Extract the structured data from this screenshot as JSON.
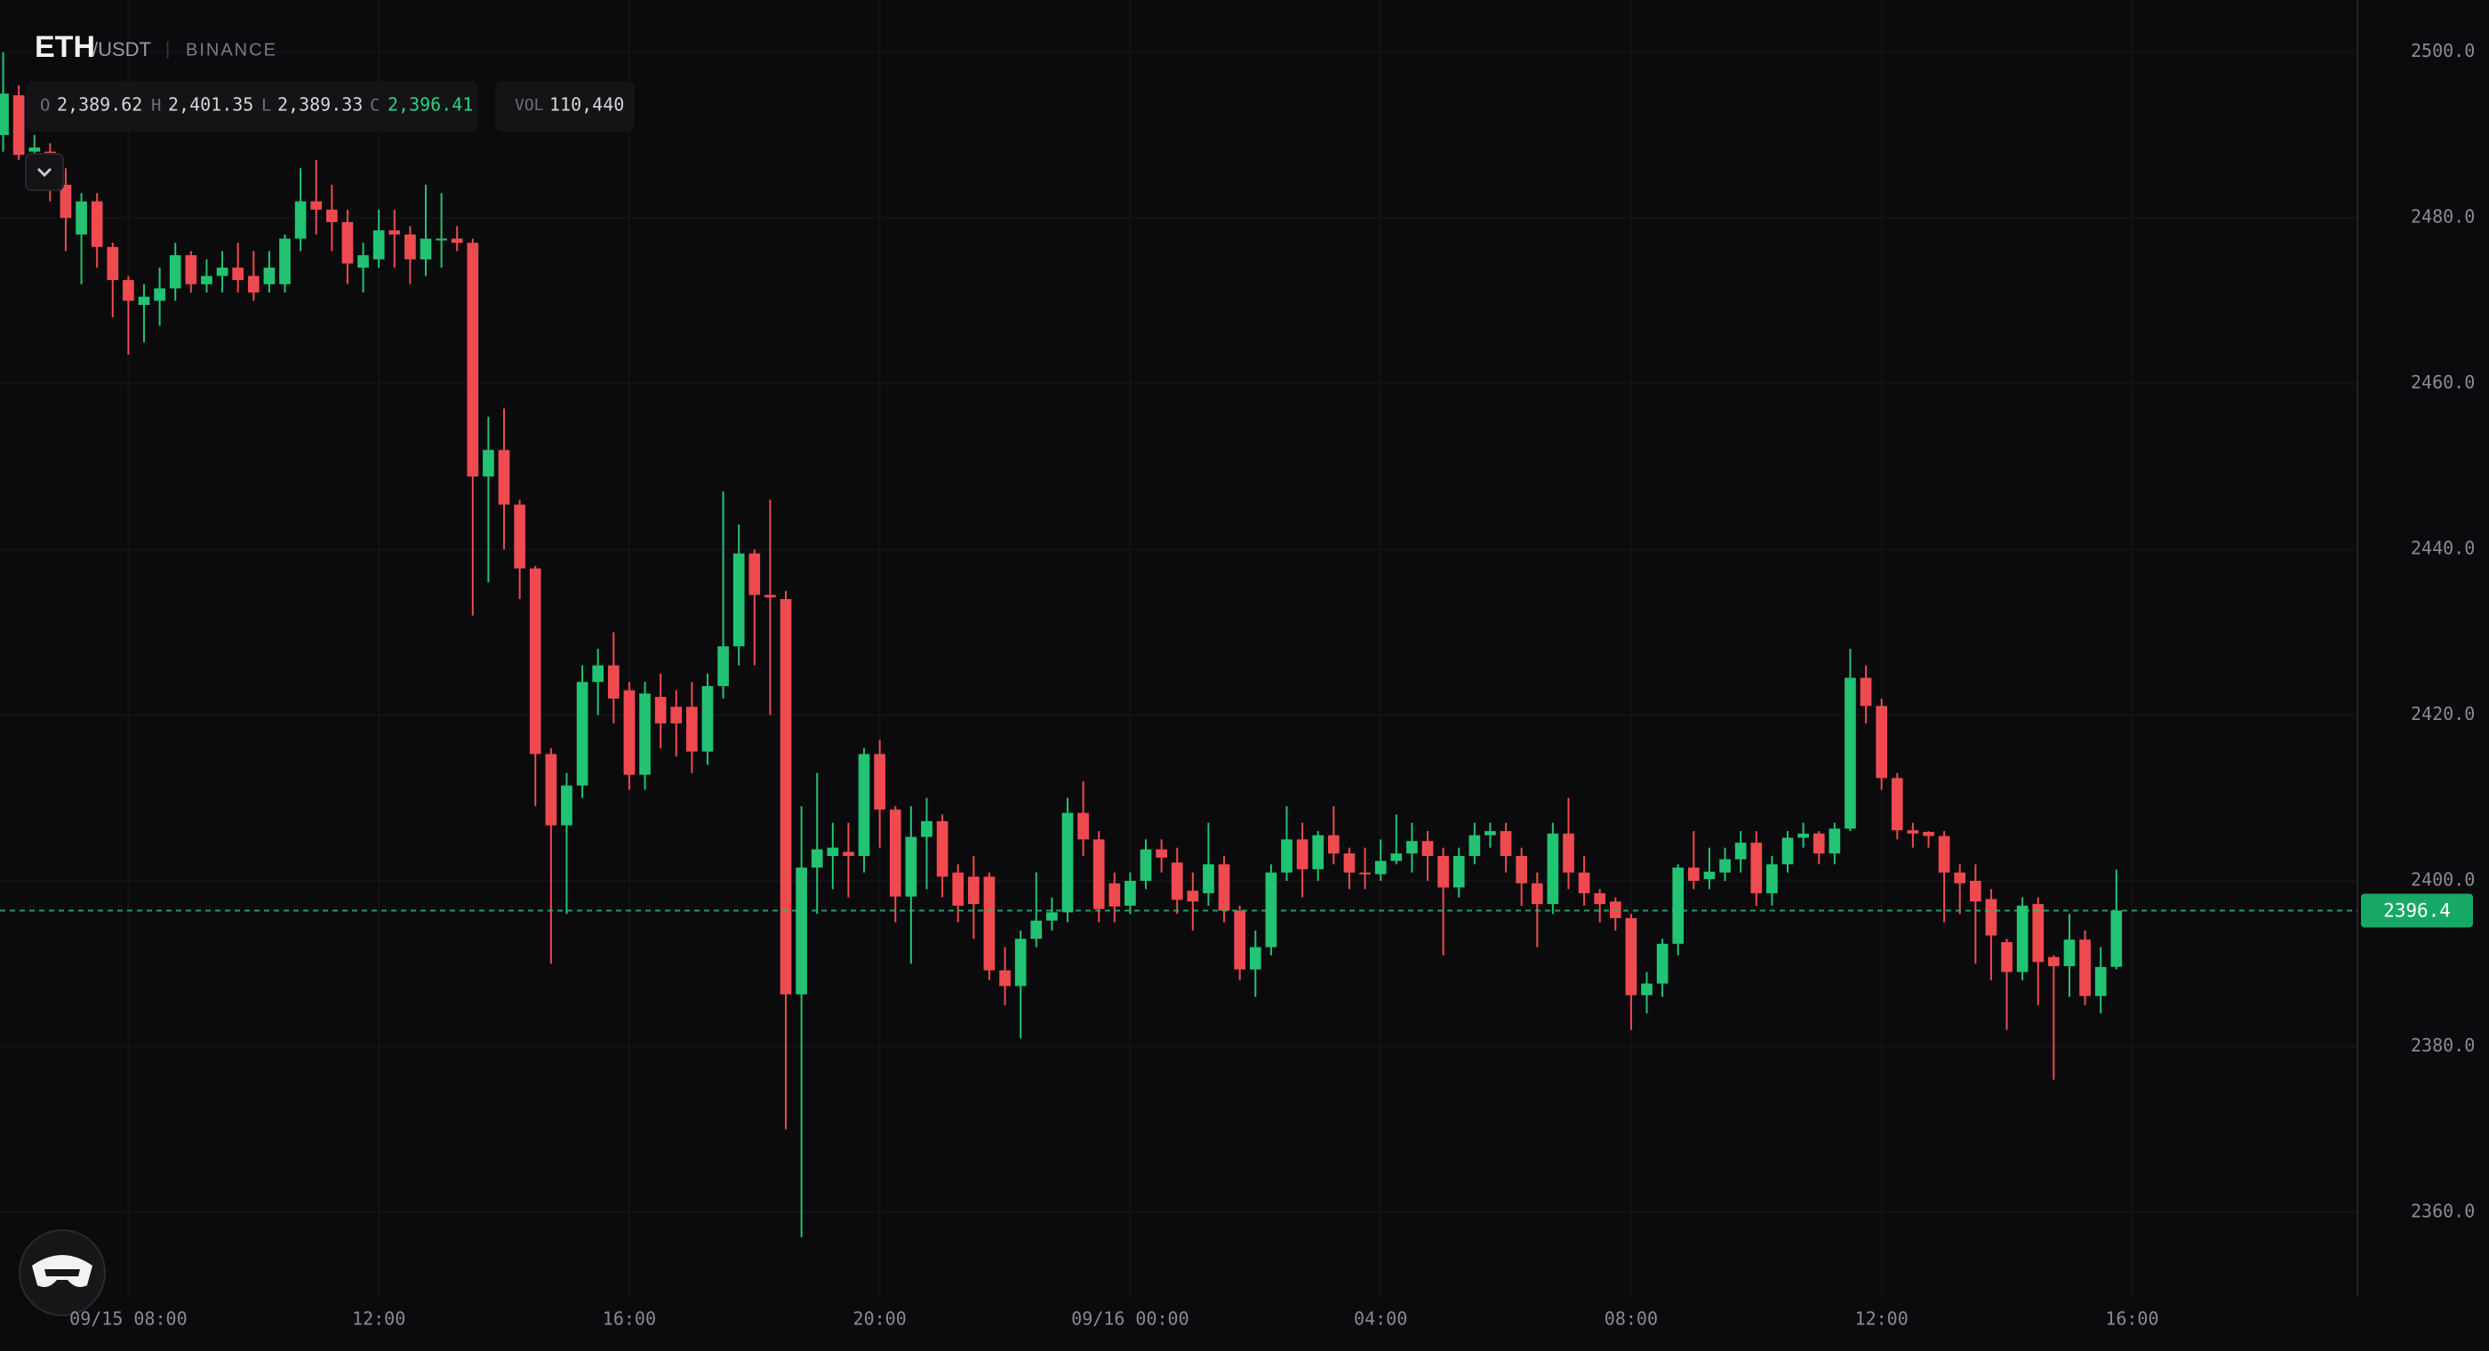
{
  "header": {
    "symbol": "ETH",
    "quote": "/USDT",
    "separator": "|",
    "exchange": "BINANCE",
    "ohlc": [
      {
        "label": "O",
        "value": "2,389.62"
      },
      {
        "label": "H",
        "value": "2,401.35"
      },
      {
        "label": "L",
        "value": "2,389.33"
      },
      {
        "label": "C",
        "value": "2,396.41"
      }
    ],
    "volume": {
      "label": "VOL",
      "value": "110,440"
    }
  },
  "chart_data": {
    "type": "candlestick",
    "up_color": "#22c373",
    "down_color": "#ef4a4f",
    "grid": true,
    "open": [
      2490,
      2494.8,
      2488,
      2488,
      2484,
      2478,
      2482,
      2476.5,
      2472.5,
      2469.5,
      2470,
      2471.5,
      2475.5,
      2472,
      2473,
      2474,
      2473,
      2472,
      2472,
      2477.5,
      2482,
      2481,
      2479.5,
      2474,
      2475,
      2478.5,
      2478,
      2475,
      2477.5,
      2477.5,
      2477,
      2448.8,
      2452,
      2445.4,
      2437.7,
      2415.3,
      2406.7,
      2411.5,
      2424,
      2426,
      2423,
      2412.8,
      2422.2,
      2421,
      2421,
      2415.6,
      2423.5,
      2428.3,
      2439.5,
      2434.5,
      2434,
      2386.3,
      2401.6,
      2403,
      2403.5,
      2403,
      2415.3,
      2408.6,
      2398.1,
      2405.3,
      2407.2,
      2401,
      2400.5,
      2400.5,
      2389.2,
      2387.3,
      2393,
      2395.2,
      2396.2,
      2408.2,
      2405,
      2399.7,
      2397,
      2400,
      2403.8,
      2402.2,
      2398.8,
      2398.5,
      2402,
      2396.4,
      2389.3,
      2392,
      2401,
      2405,
      2401.4,
      2405.5,
      2403.3,
      2401,
      2400.8,
      2402.4,
      2403.3,
      2404.8,
      2403,
      2399.2,
      2403,
      2405.5,
      2406,
      2403,
      2399.7,
      2397.2,
      2405.7,
      2401,
      2398.5,
      2397.5,
      2395.5,
      2386.2,
      2387.6,
      2392.4,
      2401.6,
      2400.2,
      2401,
      2402.6,
      2404.6,
      2398.5,
      2402,
      2405.2,
      2405.7,
      2403.3,
      2406.3,
      2424.5,
      2421.1,
      2412.4,
      2406.1,
      2405.9,
      2405.4,
      2401,
      2400,
      2397.8,
      2392.6,
      2389,
      2397.2,
      2390.8,
      2389.7,
      2392.9,
      2386.1,
      2389.62
    ],
    "high": [
      2500,
      2496,
      2490,
      2489,
      2486,
      2483,
      2483,
      2477,
      2473,
      2472,
      2474,
      2477,
      2476,
      2475,
      2476,
      2477,
      2476,
      2476,
      2478,
      2486,
      2487,
      2484,
      2481,
      2477,
      2481,
      2481,
      2479,
      2484,
      2483,
      2479,
      2477.5,
      2456,
      2457,
      2446,
      2438,
      2416,
      2413,
      2426,
      2428,
      2430,
      2424,
      2424,
      2425,
      2423,
      2424,
      2425,
      2447,
      2443,
      2440,
      2446,
      2435,
      2409,
      2413,
      2407,
      2407,
      2416,
      2417,
      2409,
      2409,
      2410,
      2408,
      2402,
      2403,
      2401,
      2392,
      2394,
      2401,
      2398,
      2410,
      2412,
      2406,
      2401,
      2401,
      2405,
      2405,
      2404,
      2401,
      2407,
      2403,
      2397,
      2394,
      2402,
      2409,
      2407,
      2406,
      2409,
      2404,
      2404,
      2405,
      2408,
      2407,
      2406,
      2404,
      2404,
      2407,
      2407,
      2407,
      2404,
      2401,
      2407,
      2410,
      2403,
      2399,
      2398,
      2396,
      2389,
      2393,
      2402,
      2406,
      2404,
      2404,
      2406,
      2406,
      2403,
      2406,
      2407,
      2406,
      2407,
      2428,
      2426,
      2422,
      2413,
      2407,
      2406,
      2406,
      2402,
      2402,
      2399,
      2393,
      2398,
      2398,
      2391,
      2396,
      2394,
      2392,
      2401.35
    ],
    "low": [
      2488,
      2487,
      2485,
      2482,
      2476,
      2472,
      2474,
      2468,
      2463.5,
      2465,
      2467,
      2470,
      2471,
      2471,
      2471,
      2471,
      2470,
      2471,
      2471,
      2476,
      2478,
      2476,
      2472,
      2471,
      2474,
      2474,
      2472,
      2473,
      2474,
      2476,
      2432,
      2436,
      2440,
      2434,
      2409,
      2390,
      2396,
      2410,
      2420,
      2419,
      2411,
      2411,
      2416,
      2415,
      2413,
      2414,
      2422,
      2426,
      2426,
      2420,
      2370,
      2357,
      2396,
      2399,
      2398,
      2401,
      2404,
      2395,
      2390,
      2399,
      2398,
      2395,
      2393,
      2388,
      2385,
      2381,
      2392,
      2394,
      2395,
      2403,
      2395,
      2395,
      2396,
      2399,
      2401,
      2396,
      2394,
      2397,
      2395,
      2388,
      2386,
      2391,
      2400,
      2398,
      2400,
      2402,
      2399,
      2399,
      2400,
      2402,
      2401,
      2400,
      2391,
      2398,
      2402,
      2404,
      2401,
      2397,
      2392,
      2396,
      2399,
      2397,
      2395,
      2394,
      2382,
      2384,
      2386,
      2391,
      2399,
      2399,
      2400,
      2401,
      2397,
      2397,
      2401,
      2404,
      2402,
      2402,
      2406,
      2419,
      2411,
      2405,
      2404,
      2404,
      2395,
      2396,
      2390,
      2388,
      2382,
      2388,
      2385,
      2376,
      2386,
      2385,
      2384,
      2389.33
    ],
    "close": [
      2495,
      2487.6,
      2488.5,
      2485.5,
      2480,
      2482,
      2476.5,
      2472.5,
      2470,
      2470.5,
      2471.5,
      2475.5,
      2472,
      2473,
      2474,
      2472.5,
      2471,
      2474,
      2477.5,
      2482,
      2481,
      2479.5,
      2474.5,
      2475.5,
      2478.5,
      2478,
      2475,
      2477.5,
      2477.5,
      2477,
      2448.8,
      2452,
      2445.4,
      2437.7,
      2415.3,
      2406.7,
      2411.5,
      2424,
      2426,
      2422,
      2412.8,
      2422.6,
      2419,
      2419,
      2415.6,
      2423.5,
      2428.3,
      2439.5,
      2434.5,
      2434.2,
      2386.3,
      2401.6,
      2403.8,
      2404,
      2403,
      2415.3,
      2408.6,
      2398.1,
      2405.3,
      2407.2,
      2400.5,
      2397,
      2397.2,
      2389.2,
      2387.3,
      2393,
      2395.2,
      2396.2,
      2408.2,
      2405,
      2396.6,
      2396.9,
      2400,
      2403.8,
      2402.8,
      2397.7,
      2397.5,
      2402,
      2396.4,
      2389.3,
      2392,
      2401,
      2405,
      2401.4,
      2405.5,
      2403.3,
      2401,
      2400.8,
      2402.4,
      2403.3,
      2404.8,
      2403,
      2399.2,
      2403,
      2405.5,
      2406,
      2403,
      2399.7,
      2397.2,
      2405.7,
      2401,
      2398.5,
      2397.2,
      2395.5,
      2386.2,
      2387.6,
      2392.4,
      2401.6,
      2400,
      2401.1,
      2402.6,
      2404.6,
      2398.5,
      2402,
      2405.2,
      2405.7,
      2403.3,
      2406.3,
      2424.5,
      2421.1,
      2412.4,
      2406.1,
      2405.7,
      2405.4,
      2401,
      2399.7,
      2397.5,
      2393.4,
      2389,
      2397,
      2390.2,
      2389.7,
      2392.9,
      2386.1,
      2389.6,
      2396.41
    ],
    "xlim": [
      -0.2,
      150.4
    ],
    "xticks": [
      {
        "value": 8,
        "label": "09/15 08:00"
      },
      {
        "value": 24,
        "label": "12:00"
      },
      {
        "value": 40,
        "label": "16:00"
      },
      {
        "value": 56,
        "label": "20:00"
      },
      {
        "value": 72,
        "label": "09/16 00:00"
      },
      {
        "value": 88,
        "label": "04:00"
      },
      {
        "value": 104,
        "label": "08:00"
      },
      {
        "value": 120,
        "label": "12:00"
      },
      {
        "value": 136,
        "label": "16:00"
      }
    ],
    "ylim": [
      2349.8,
      2506.3
    ],
    "yticks": [
      {
        "value": 2360,
        "label": "2360.0"
      },
      {
        "value": 2380,
        "label": "2380.0"
      },
      {
        "value": 2400,
        "label": "2400.0"
      },
      {
        "value": 2420,
        "label": "2420.0"
      },
      {
        "value": 2440,
        "label": "2440.0"
      },
      {
        "value": 2460,
        "label": "2460.0"
      },
      {
        "value": 2480,
        "label": "2480.0"
      },
      {
        "value": 2500,
        "label": "2500.0"
      }
    ],
    "last_price": {
      "value": 2396.41,
      "label": "2396.4"
    }
  }
}
